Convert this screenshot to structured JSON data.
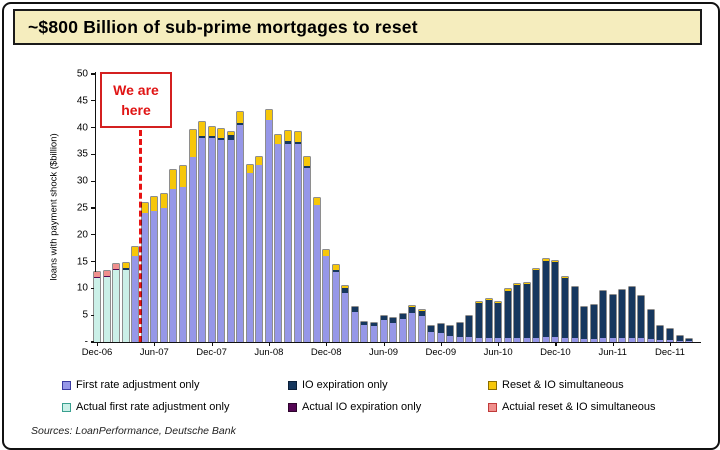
{
  "page": {
    "title": "~$800 Billion of sub-prime mortgages to reset",
    "sources": "Sources: LoanPerformance, Deutsche Bank"
  },
  "annotation": {
    "we_are_here": "We are here"
  },
  "legend": {
    "rows": [
      [
        {
          "key": "fra",
          "label": "First rate adjustment only"
        },
        {
          "key": "io",
          "label": "IO expiration only"
        },
        {
          "key": "reset",
          "label": "Reset & IO simultaneous"
        }
      ],
      [
        {
          "key": "afra",
          "label": "Actual first rate adjustment only"
        },
        {
          "key": "aio",
          "label": "Actual IO expiration only"
        },
        {
          "key": "areset",
          "label": "Actuial reset & IO simultaneous"
        }
      ]
    ]
  },
  "chart_data": {
    "type": "bar",
    "stacked": true,
    "ylabel": "loans with payment shock ($billion)",
    "ylim": [
      0,
      50
    ],
    "grid": false,
    "y_ticks": [
      {
        "label": "50",
        "v": 50
      },
      {
        "label": "45",
        "v": 45
      },
      {
        "label": "40",
        "v": 40
      },
      {
        "label": "35",
        "v": 35
      },
      {
        "label": "30",
        "v": 30
      },
      {
        "label": "25",
        "v": 25
      },
      {
        "label": "20",
        "v": 20
      },
      {
        "label": "15",
        "v": 15
      },
      {
        "label": "10",
        "v": 10
      },
      {
        "label": "5",
        "v": 5
      },
      {
        "label": "-",
        "v": 0
      }
    ],
    "x_ticks": [
      {
        "label": "Dec-06",
        "i": 0
      },
      {
        "label": "Jun-07",
        "i": 6
      },
      {
        "label": "Dec-07",
        "i": 12
      },
      {
        "label": "Jun-08",
        "i": 18
      },
      {
        "label": "Dec-08",
        "i": 24
      },
      {
        "label": "Jun-09",
        "i": 30
      },
      {
        "label": "Dec-09",
        "i": 36
      },
      {
        "label": "Jun-10",
        "i": 42
      },
      {
        "label": "Dec-10",
        "i": 48
      },
      {
        "label": "Jun-11",
        "i": 54
      },
      {
        "label": "Dec-11",
        "i": 60
      }
    ],
    "colors": {
      "fra": "#9697E8",
      "io": "#16375E",
      "reset": "#F7C709",
      "afra": "#CBF0E8",
      "aio": "#550755",
      "areset": "#F0908D"
    },
    "swatch_borders": {
      "fra": "#3939A0",
      "io": "#0B1F38",
      "reset": "#8A6D00",
      "afra": "#3AA08F",
      "aio": "#2D052D",
      "areset": "#C03A3A"
    },
    "stack_order_bottom_to_top": [
      "afra",
      "fra",
      "aio",
      "io",
      "areset",
      "reset"
    ],
    "bars": [
      {
        "m": "Dec-06",
        "afra": 12.0,
        "aio": 0.2,
        "areset": 0.8
      },
      {
        "m": "Jan-07",
        "afra": 12.2,
        "aio": 0.2,
        "areset": 0.8
      },
      {
        "m": "Feb-07",
        "afra": 13.4,
        "aio": 0.2,
        "areset": 0.9
      },
      {
        "m": "Mar-07",
        "afra": 13.5,
        "io": 0.3,
        "reset": 1.0
      },
      {
        "m": "Apr-07",
        "fra": 16.0,
        "reset": 1.7
      },
      {
        "m": "May-07",
        "fra": 24.0,
        "reset": 2.0
      },
      {
        "m": "Jun-07",
        "fra": 24.5,
        "reset": 2.5
      },
      {
        "m": "Jul-07",
        "fra": 25.0,
        "reset": 2.6
      },
      {
        "m": "Aug-07",
        "fra": 28.5,
        "reset": 3.5
      },
      {
        "m": "Sep-07",
        "fra": 29.0,
        "reset": 3.8
      },
      {
        "m": "Oct-07",
        "fra": 34.5,
        "reset": 5.0
      },
      {
        "m": "Nov-07",
        "fra": 38.0,
        "io": 0.4,
        "reset": 2.6
      },
      {
        "m": "Dec-07",
        "fra": 38.0,
        "io": 0.4,
        "reset": 1.8
      },
      {
        "m": "Jan-08",
        "fra": 37.6,
        "io": 0.5,
        "reset": 1.6
      },
      {
        "m": "Feb-08",
        "fra": 37.6,
        "io": 1.1,
        "reset": 0.5
      },
      {
        "m": "Mar-08",
        "fra": 40.5,
        "io": 0.3,
        "reset": 2.2
      },
      {
        "m": "Apr-08",
        "fra": 31.5,
        "reset": 1.5
      },
      {
        "m": "May-08",
        "fra": 33.0,
        "reset": 1.6
      },
      {
        "m": "Jun-08",
        "fra": 41.5,
        "reset": 1.7
      },
      {
        "m": "Jul-08",
        "fra": 37.0,
        "reset": 1.7
      },
      {
        "m": "Aug-08",
        "fra": 37.0,
        "io": 0.5,
        "reset": 1.9
      },
      {
        "m": "Sep-08",
        "fra": 37.0,
        "io": 0.4,
        "reset": 1.8
      },
      {
        "m": "Oct-08",
        "fra": 32.5,
        "io": 0.3,
        "reset": 1.7
      },
      {
        "m": "Nov-08",
        "fra": 25.5,
        "reset": 1.3
      },
      {
        "m": "Dec-08",
        "fra": 16.0,
        "reset": 1.2
      },
      {
        "m": "Jan-09",
        "fra": 13.0,
        "io": 0.4,
        "reset": 1.0
      },
      {
        "m": "Feb-09",
        "fra": 9.2,
        "io": 0.8,
        "reset": 0.4
      },
      {
        "m": "Mar-09",
        "fra": 5.6,
        "io": 1.0
      },
      {
        "m": "Apr-09",
        "fra": 3.2,
        "io": 0.6
      },
      {
        "m": "May-09",
        "fra": 3.0,
        "io": 0.6
      },
      {
        "m": "Jun-09",
        "fra": 4.1,
        "io": 0.8
      },
      {
        "m": "Jul-09",
        "fra": 3.6,
        "io": 0.8
      },
      {
        "m": "Aug-09",
        "fra": 4.3,
        "io": 0.9
      },
      {
        "m": "Sep-09",
        "fra": 5.5,
        "io": 1.0,
        "reset": 0.2
      },
      {
        "m": "Oct-09",
        "fra": 4.9,
        "io": 0.9,
        "reset": 0.2
      },
      {
        "m": "Nov-09",
        "fra": 1.8,
        "io": 1.2
      },
      {
        "m": "Dec-09",
        "fra": 1.6,
        "io": 1.8
      },
      {
        "m": "Jan-10",
        "fra": 1.2,
        "io": 1.8
      },
      {
        "m": "Feb-10",
        "fra": 1.0,
        "io": 2.5
      },
      {
        "m": "Mar-10",
        "fra": 0.9,
        "io": 4.0
      },
      {
        "m": "Apr-10",
        "fra": 0.8,
        "io": 6.5,
        "reset": 0.2
      },
      {
        "m": "May-10",
        "fra": 0.8,
        "io": 7.0,
        "reset": 0.2
      },
      {
        "m": "Jun-10",
        "fra": 0.7,
        "io": 6.6,
        "reset": 0.2
      },
      {
        "m": "Jul-10",
        "fra": 0.7,
        "io": 8.9,
        "reset": 0.2
      },
      {
        "m": "Aug-10",
        "fra": 0.8,
        "io": 9.9,
        "reset": 0.2
      },
      {
        "m": "Sep-10",
        "fra": 0.8,
        "io": 10.0,
        "reset": 0.2
      },
      {
        "m": "Oct-10",
        "fra": 0.8,
        "io": 12.7,
        "reset": 0.2
      },
      {
        "m": "Nov-10",
        "fra": 0.9,
        "io": 14.2,
        "reset": 0.3
      },
      {
        "m": "Dec-10",
        "fra": 0.9,
        "io": 14.0,
        "reset": 0.3
      },
      {
        "m": "Jan-11",
        "fra": 0.8,
        "io": 11.2,
        "reset": 0.2
      },
      {
        "m": "Feb-11",
        "fra": 0.8,
        "io": 9.4
      },
      {
        "m": "Mar-11",
        "fra": 0.6,
        "io": 5.9
      },
      {
        "m": "Apr-11",
        "fra": 0.6,
        "io": 6.3
      },
      {
        "m": "May-11",
        "fra": 0.8,
        "io": 8.8
      },
      {
        "m": "Jun-11",
        "fra": 0.8,
        "io": 8.0
      },
      {
        "m": "Jul-11",
        "fra": 0.8,
        "io": 8.9
      },
      {
        "m": "Aug-11",
        "fra": 0.8,
        "io": 9.4
      },
      {
        "m": "Sep-11",
        "fra": 0.7,
        "io": 7.9
      },
      {
        "m": "Oct-11",
        "fra": 0.5,
        "io": 5.5
      },
      {
        "m": "Nov-11",
        "fra": 0.3,
        "io": 2.6
      },
      {
        "m": "Dec-11",
        "fra": 0.3,
        "io": 2.1
      },
      {
        "m": "Jan-12",
        "fra": 0.2,
        "io": 0.9
      },
      {
        "m": "Feb-12",
        "fra": 0.1,
        "io": 0.4
      }
    ]
  }
}
